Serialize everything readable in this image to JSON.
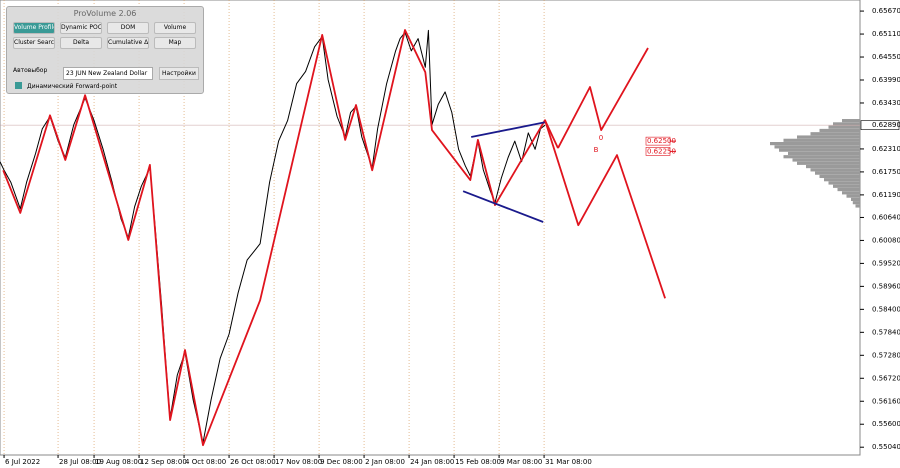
{
  "chart_data": {
    "type": "line",
    "xlim": [
      -0.9,
      190.2
    ],
    "xticks": [
      {
        "value": 0,
        "label": "6 Jul 2022"
      },
      {
        "value": 12,
        "label": "28 Jul 08:00"
      },
      {
        "value": 20,
        "label": "19 Aug 08:00"
      },
      {
        "value": 30,
        "label": "12 Sep 08:00"
      },
      {
        "value": 40,
        "label": "4 Oct 08:00"
      },
      {
        "value": 50,
        "label": "26 Oct 08:00"
      },
      {
        "value": 60,
        "label": "17 Nov 08:00"
      },
      {
        "value": 70,
        "label": "9 Dec 08:00"
      },
      {
        "value": 80,
        "label": "2 Jan 08:00"
      },
      {
        "value": 90,
        "label": "24 Jan 08:00"
      },
      {
        "value": 100,
        "label": "15 Feb 08:00"
      },
      {
        "value": 110,
        "label": "9 Mar 08:00"
      },
      {
        "value": 120,
        "label": "31 Mar 08:00"
      }
    ],
    "ylim": [
      0.5485,
      0.6594
    ],
    "yticks": [
      {
        "value": 0.6567,
        "label": "0.65670"
      },
      {
        "value": 0.6511,
        "label": "0.65110"
      },
      {
        "value": 0.6455,
        "label": "0.64550"
      },
      {
        "value": 0.6399,
        "label": "0.63990"
      },
      {
        "value": 0.6343,
        "label": "0.63430"
      },
      {
        "value": 0.6231,
        "label": "0.62310"
      },
      {
        "value": 0.6175,
        "label": "0.61750"
      },
      {
        "value": 0.6119,
        "label": "0.61190"
      },
      {
        "value": 0.6064,
        "label": "0.60640"
      },
      {
        "value": 0.6008,
        "label": "0.60080"
      },
      {
        "value": 0.5952,
        "label": "0.59520"
      },
      {
        "value": 0.5896,
        "label": "0.58960"
      },
      {
        "value": 0.584,
        "label": "0.58400"
      },
      {
        "value": 0.5784,
        "label": "0.57840"
      },
      {
        "value": 0.5728,
        "label": "0.57280"
      },
      {
        "value": 0.5672,
        "label": "0.56720"
      },
      {
        "value": 0.5616,
        "label": "0.56160"
      },
      {
        "value": 0.556,
        "label": "0.55600"
      },
      {
        "value": 0.5504,
        "label": "0.55040"
      }
    ],
    "grid": true,
    "current_price": {
      "value": 0.6289,
      "label": "0.62890"
    },
    "levels": [
      {
        "value": 0.625,
        "label": "0.62500"
      },
      {
        "value": 0.6225,
        "label": "0.62250"
      }
    ],
    "wave_labels": [
      "0",
      "B"
    ],
    "series": [
      {
        "color": "#000000",
        "x": [
          -0.9,
          0,
          1.5,
          3.6,
          5,
          7,
          8.5,
          10.2,
          12,
          13.6,
          15.5,
          18,
          20,
          22,
          24,
          26,
          27.6,
          29,
          30.5,
          32.4,
          33.5,
          35,
          36,
          36.9,
          38.5,
          40.2,
          42,
          44.2,
          46,
          48,
          50,
          52,
          54,
          56.9,
          59,
          61,
          63,
          65,
          67,
          69,
          70.7,
          72,
          74,
          75.8,
          77,
          78.2,
          79.5,
          81.8,
          83,
          85,
          87,
          88,
          89.1,
          90.5,
          92,
          93.6,
          94.3,
          95.1,
          96.5,
          98,
          99.5,
          101,
          102.5,
          103.6,
          105.3,
          106.5,
          108,
          109.1,
          110.5,
          112,
          113.5,
          115,
          116.5,
          118,
          119.2,
          120.2
        ],
        "values": [
          0.62,
          0.6179,
          0.615,
          0.6085,
          0.615,
          0.622,
          0.628,
          0.631,
          0.625,
          0.621,
          0.629,
          0.6355,
          0.63,
          0.623,
          0.615,
          0.606,
          0.6015,
          0.609,
          0.614,
          0.6185,
          0.605,
          0.585,
          0.57,
          0.5575,
          0.568,
          0.5735,
          0.562,
          0.5515,
          0.562,
          0.572,
          0.578,
          0.588,
          0.596,
          0.6,
          0.615,
          0.625,
          0.63,
          0.639,
          0.642,
          0.648,
          0.6505,
          0.64,
          0.631,
          0.626,
          0.632,
          0.6335,
          0.626,
          0.6185,
          0.628,
          0.639,
          0.647,
          0.65,
          0.6515,
          0.647,
          0.65,
          0.643,
          0.652,
          0.629,
          0.634,
          0.637,
          0.632,
          0.623,
          0.619,
          0.6165,
          0.625,
          0.618,
          0.613,
          0.61,
          0.616,
          0.621,
          0.625,
          0.62,
          0.627,
          0.623,
          0.628,
          0.6289
        ]
      },
      {
        "color": "#e0141e",
        "x": [
          -0.2,
          3.6,
          10.2,
          13.6,
          18,
          27.6,
          32.4,
          36.9,
          40.2,
          44.2,
          56.9,
          70.7,
          75.8,
          78.2,
          81.8,
          89.1,
          93.6,
          95.1,
          103.6,
          105.3,
          109.1,
          120.2,
          123.1
        ],
        "values": [
          0.6179,
          0.6075,
          0.6313,
          0.6204,
          0.6362,
          0.6009,
          0.6192,
          0.557,
          0.5741,
          0.5509,
          0.5862,
          0.6509,
          0.6253,
          0.6338,
          0.6179,
          0.6521,
          0.6418,
          0.6277,
          0.6155,
          0.6253,
          0.6094,
          0.6301,
          0.6233
        ]
      },
      {
        "color": "#1a1a8c",
        "x": [
          103.8,
          120.2
        ],
        "values": [
          0.626,
          0.6296
        ]
      },
      {
        "color": "#1a1a8c",
        "x": [
          102,
          119.8
        ],
        "values": [
          0.6128,
          0.6053
        ]
      },
      {
        "color": "#e0141e",
        "x": [
          120.2,
          127.6,
          136.2,
          146.9
        ],
        "values": [
          0.6301,
          0.6045,
          0.6216,
          0.5867
        ]
      },
      {
        "color": "#e0141e",
        "x": [
          123.1,
          130.2,
          132.7,
          143.1
        ],
        "values": [
          0.6233,
          0.6382,
          0.6277,
          0.6477
        ]
      }
    ],
    "volume_profile": {
      "color": "#9a9a9a",
      "prices": [
        0.63,
        0.6292,
        0.6284,
        0.6276,
        0.6268,
        0.626,
        0.6252,
        0.6244,
        0.6236,
        0.6228,
        0.622,
        0.6212,
        0.6204,
        0.6196,
        0.6188,
        0.618,
        0.6172,
        0.6164,
        0.6156,
        0.6148,
        0.614,
        0.6132,
        0.6124,
        0.6116,
        0.6108,
        0.61,
        0.6092
      ],
      "values": [
        20,
        30,
        35,
        45,
        55,
        70,
        85,
        100,
        95,
        90,
        80,
        85,
        75,
        70,
        60,
        55,
        50,
        45,
        40,
        35,
        30,
        25,
        20,
        15,
        10,
        8,
        5
      ]
    }
  },
  "panel": {
    "title": "ProVolume 2.06",
    "buttons": [
      "Volume Profile",
      "Dynamic POC",
      "DOM",
      "Volume",
      "Cluster Search",
      "Delta",
      "Cumulative Δ",
      "Map"
    ],
    "auto": "Автовыбор",
    "instrument": "23 JUN New Zealand Dollar",
    "settings": "Настройки",
    "forward": "Динамический Forward-point"
  }
}
